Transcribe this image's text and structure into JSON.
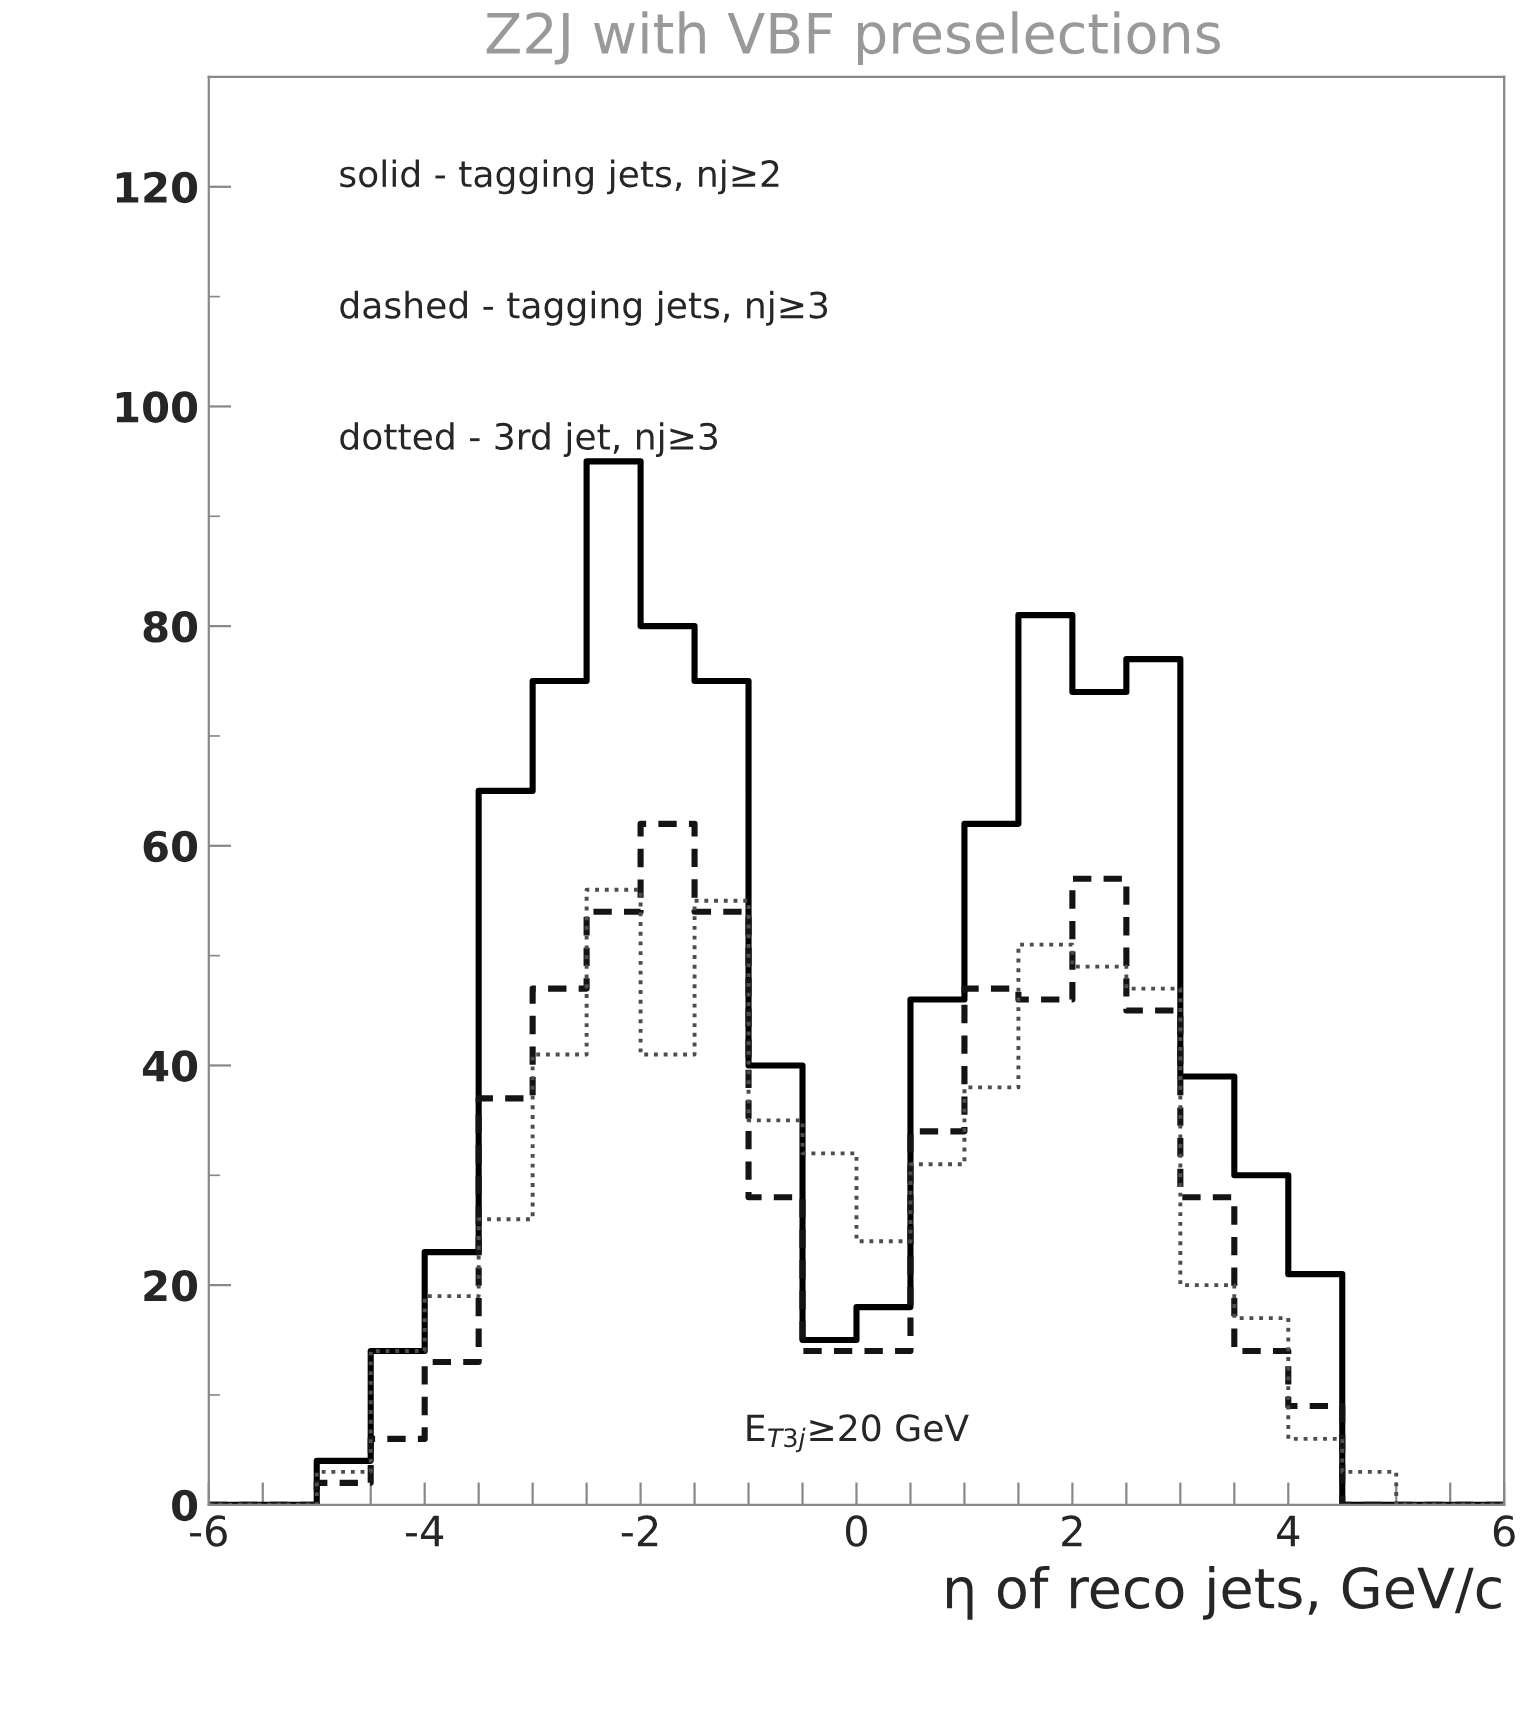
{
  "chart_data": {
    "type": "histogram",
    "title": "Z2J with VBF preselections",
    "xlabel": "η of reco jets, GeV/c",
    "bins": [
      -6,
      -5.5,
      -5,
      -4.5,
      -4,
      -3.5,
      -3,
      -2.5,
      -2,
      -1.5,
      -1,
      -0.5,
      0,
      0.5,
      1,
      1.5,
      2,
      2.5,
      3,
      3.5,
      4,
      4.5,
      5,
      5.5,
      6
    ],
    "series": [
      {
        "color": "#000000",
        "line_style": "solid",
        "values": [
          0,
          0,
          4,
          14,
          23,
          65,
          75,
          95,
          80,
          75,
          40,
          15,
          18,
          46,
          62,
          81,
          74,
          77,
          39,
          30,
          21,
          0,
          0,
          0
        ]
      },
      {
        "color": "#141414",
        "line_style": "dashed",
        "values": [
          0,
          0,
          2,
          6,
          13,
          37,
          47,
          54,
          62,
          54,
          28,
          14,
          14,
          34,
          47,
          46,
          57,
          45,
          28,
          14,
          9,
          0,
          0,
          0
        ]
      },
      {
        "color": "#4d4d4d",
        "line_style": "dotted",
        "values": [
          0,
          0,
          3,
          14,
          19,
          26,
          41,
          56,
          41,
          55,
          35,
          32,
          24,
          31,
          38,
          51,
          49,
          47,
          20,
          17,
          6,
          3,
          0,
          0
        ]
      }
    ],
    "xlim": [
      -6,
      6
    ],
    "xticks": [
      -6,
      {
        "value": -5.5,
        "label": null
      },
      {
        "value": -5,
        "label": null
      },
      {
        "value": -4.5,
        "label": null
      },
      -4,
      {
        "value": -3.5,
        "label": null
      },
      {
        "value": -3,
        "label": null
      },
      {
        "value": -2.5,
        "label": null
      },
      -2,
      {
        "value": -1.5,
        "label": null
      },
      {
        "value": -1,
        "label": null
      },
      {
        "value": -0.5,
        "label": null
      },
      0,
      {
        "value": 0.5,
        "label": null
      },
      {
        "value": 1,
        "label": null
      },
      {
        "value": 1.5,
        "label": null
      },
      2,
      {
        "value": 2.5,
        "label": null
      },
      {
        "value": 3,
        "label": null
      },
      {
        "value": 3.5,
        "label": null
      },
      4,
      {
        "value": 4.5,
        "label": null
      },
      {
        "value": 5,
        "label": null
      },
      {
        "value": 5.5,
        "label": null
      },
      6
    ],
    "ylim": [
      0,
      130
    ],
    "yticks": [
      0,
      20,
      40,
      60,
      80,
      100,
      120
    ],
    "annotations": [
      "solid - tagging jets, nj≥2",
      "dashed - tagging jets, nj≥3",
      "dotted - 3rd jet, nj≥3",
      "E$_{T3j}$≥20 GeV"
    ],
    "grid": false,
    "legend": false
  }
}
